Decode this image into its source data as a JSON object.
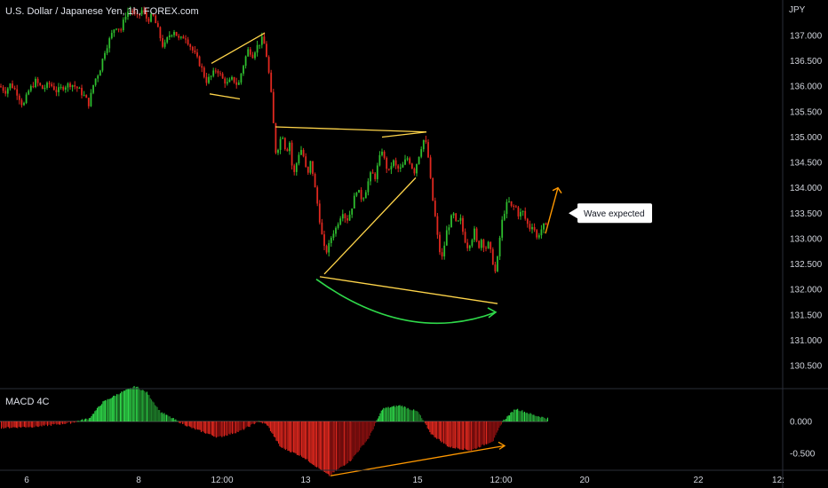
{
  "header": {
    "symbol_title": "U.S. Dollar / Japanese Yen, 1h, FOREX.com",
    "currency": "JPY"
  },
  "indicator": {
    "name": "MACD 4C"
  },
  "annotation": {
    "callout_text": "Wave expected"
  },
  "colors": {
    "up": "#26a69a",
    "candle_up": "#2ebd2e",
    "candle_down": "#e0281f",
    "pattern": "#ffd54a",
    "projection": "#ff9800",
    "curve": "#2fd94a",
    "background": "#000000",
    "axis_text": "#d1d4dc"
  },
  "chart_data": {
    "type": "candlestick",
    "symbol": "USD/JPY",
    "timeframe": "1h",
    "y_axis": {
      "label": "JPY",
      "range": [
        130.2,
        137.6
      ],
      "tick_labels": [
        "137.000",
        "136.500",
        "136.000",
        "135.500",
        "135.000",
        "134.500",
        "134.000",
        "133.500",
        "133.000",
        "132.500",
        "132.000",
        "131.500",
        "131.000",
        "130.500"
      ]
    },
    "x_axis": {
      "tick_labels": [
        "6",
        "8",
        "12:00",
        "13",
        "15",
        "12:00",
        "20",
        "22",
        "12:"
      ]
    },
    "price_path": [
      [
        0,
        136.0
      ],
      [
        6,
        135.9
      ],
      [
        12,
        136.05
      ],
      [
        20,
        135.85
      ],
      [
        26,
        135.6
      ],
      [
        32,
        135.9
      ],
      [
        40,
        136.1
      ],
      [
        48,
        135.95
      ],
      [
        56,
        136.05
      ],
      [
        64,
        135.9
      ],
      [
        72,
        136.0
      ],
      [
        80,
        136.05
      ],
      [
        88,
        135.95
      ],
      [
        95,
        135.8
      ],
      [
        100,
        135.65
      ],
      [
        106,
        136.1
      ],
      [
        112,
        136.3
      ],
      [
        118,
        136.7
      ],
      [
        124,
        136.95
      ],
      [
        130,
        137.2
      ],
      [
        136,
        137.1
      ],
      [
        142,
        137.45
      ],
      [
        148,
        137.5
      ],
      [
        154,
        137.35
      ],
      [
        160,
        137.5
      ],
      [
        166,
        137.3
      ],
      [
        172,
        137.4
      ],
      [
        178,
        137.1
      ],
      [
        184,
        136.75
      ],
      [
        190,
        137.0
      ],
      [
        196,
        137.1
      ],
      [
        202,
        136.9
      ],
      [
        208,
        137.0
      ],
      [
        214,
        136.8
      ],
      [
        220,
        136.6
      ],
      [
        226,
        136.4
      ],
      [
        232,
        136.1
      ],
      [
        238,
        136.2
      ],
      [
        244,
        136.35
      ],
      [
        250,
        136.15
      ],
      [
        256,
        136.05
      ],
      [
        262,
        136.15
      ],
      [
        268,
        136.0
      ],
      [
        272,
        136.3
      ],
      [
        276,
        136.55
      ],
      [
        280,
        136.75
      ],
      [
        284,
        136.6
      ],
      [
        288,
        136.75
      ],
      [
        292,
        136.85
      ],
      [
        296,
        136.95
      ],
      [
        300,
        136.6
      ],
      [
        303,
        136.2
      ],
      [
        306,
        135.7
      ],
      [
        308,
        135.2
      ],
      [
        311,
        134.6
      ],
      [
        314,
        134.9
      ],
      [
        318,
        135.05
      ],
      [
        322,
        134.7
      ],
      [
        326,
        134.9
      ],
      [
        330,
        134.2
      ],
      [
        334,
        134.5
      ],
      [
        338,
        134.8
      ],
      [
        342,
        134.6
      ],
      [
        346,
        134.2
      ],
      [
        350,
        134.55
      ],
      [
        354,
        134.05
      ],
      [
        358,
        133.6
      ],
      [
        362,
        133.1
      ],
      [
        366,
        132.7
      ],
      [
        370,
        132.85
      ],
      [
        374,
        133.1
      ],
      [
        378,
        133.2
      ],
      [
        382,
        133.4
      ],
      [
        386,
        133.55
      ],
      [
        390,
        133.35
      ],
      [
        394,
        133.5
      ],
      [
        398,
        133.75
      ],
      [
        402,
        134.0
      ],
      [
        406,
        133.8
      ],
      [
        410,
        133.85
      ],
      [
        414,
        134.1
      ],
      [
        418,
        134.3
      ],
      [
        422,
        134.2
      ],
      [
        426,
        134.5
      ],
      [
        430,
        134.75
      ],
      [
        434,
        134.45
      ],
      [
        438,
        134.3
      ],
      [
        442,
        134.55
      ],
      [
        446,
        134.4
      ],
      [
        450,
        134.35
      ],
      [
        454,
        134.45
      ],
      [
        458,
        134.6
      ],
      [
        462,
        134.5
      ],
      [
        466,
        134.3
      ],
      [
        470,
        134.55
      ],
      [
        474,
        134.8
      ],
      [
        478,
        135.0
      ],
      [
        482,
        134.6
      ],
      [
        486,
        133.9
      ],
      [
        490,
        133.4
      ],
      [
        494,
        132.8
      ],
      [
        498,
        132.6
      ],
      [
        502,
        133.1
      ],
      [
        506,
        133.3
      ],
      [
        510,
        133.5
      ],
      [
        514,
        133.25
      ],
      [
        518,
        133.4
      ],
      [
        522,
        133.05
      ],
      [
        526,
        132.85
      ],
      [
        530,
        132.95
      ],
      [
        534,
        133.15
      ],
      [
        538,
        132.8
      ],
      [
        542,
        133.0
      ],
      [
        546,
        132.8
      ],
      [
        550,
        132.9
      ],
      [
        554,
        132.6
      ],
      [
        558,
        132.3
      ],
      [
        561,
        132.75
      ],
      [
        564,
        133.25
      ],
      [
        568,
        133.55
      ],
      [
        572,
        133.75
      ],
      [
        576,
        133.6
      ],
      [
        580,
        133.65
      ],
      [
        584,
        133.45
      ],
      [
        588,
        133.55
      ],
      [
        592,
        133.35
      ],
      [
        596,
        133.2
      ],
      [
        600,
        133.3
      ],
      [
        604,
        133.0
      ],
      [
        608,
        133.15
      ],
      [
        612,
        133.25
      ],
      [
        616,
        133.2
      ]
    ],
    "macd_path": [
      [
        0,
        -0.1
      ],
      [
        40,
        -0.08
      ],
      [
        80,
        -0.02
      ],
      [
        100,
        0.05
      ],
      [
        115,
        0.3
      ],
      [
        135,
        0.45
      ],
      [
        152,
        0.55
      ],
      [
        165,
        0.45
      ],
      [
        180,
        0.15
      ],
      [
        200,
        0.0
      ],
      [
        215,
        -0.1
      ],
      [
        245,
        -0.25
      ],
      [
        270,
        -0.15
      ],
      [
        290,
        0.0
      ],
      [
        300,
        -0.05
      ],
      [
        315,
        -0.4
      ],
      [
        340,
        -0.55
      ],
      [
        370,
        -0.85
      ],
      [
        395,
        -0.6
      ],
      [
        415,
        -0.25
      ],
      [
        430,
        0.2
      ],
      [
        450,
        0.25
      ],
      [
        470,
        0.15
      ],
      [
        485,
        -0.2
      ],
      [
        505,
        -0.4
      ],
      [
        530,
        -0.45
      ],
      [
        555,
        -0.3
      ],
      [
        565,
        0.0
      ],
      [
        580,
        0.2
      ],
      [
        600,
        0.1
      ],
      [
        615,
        0.05
      ]
    ],
    "macd_y_axis": {
      "tick_labels": [
        "0.000",
        "-0.500"
      ],
      "range": [
        -0.9,
        0.6
      ]
    },
    "patterns": {
      "wedge_small": [
        {
          "from": [
            238,
            136.45
          ],
          "to": [
            298,
            137.05
          ]
        },
        {
          "from": [
            236,
            135.85
          ],
          "to": [
            270,
            135.75
          ]
        }
      ],
      "triangle_upper": [
        {
          "from": [
            310,
            135.2
          ],
          "to": [
            480,
            135.1
          ]
        },
        {
          "from": [
            430,
            135.0
          ],
          "to": [
            480,
            135.1
          ]
        }
      ],
      "triangle_diagonal": {
        "from": [
          365,
          132.3
        ],
        "to": [
          468,
          134.2
        ]
      },
      "lower_trend": {
        "from": [
          360,
          132.25
        ],
        "to": [
          560,
          131.72
        ]
      },
      "curve": {
        "from": [
          356,
          132.2
        ],
        "ctrl": [
          460,
          130.9
        ],
        "to": [
          558,
          131.55
        ]
      },
      "projection": {
        "from": [
          614,
          133.1
        ],
        "to": [
          628,
          134.0
        ]
      },
      "macd_divergence": {
        "from": [
          372,
          -0.85
        ],
        "to": [
          568,
          -0.38
        ]
      }
    },
    "callout_anchor": [
      640,
      133.5
    ],
    "grid": false,
    "legend": "none"
  }
}
